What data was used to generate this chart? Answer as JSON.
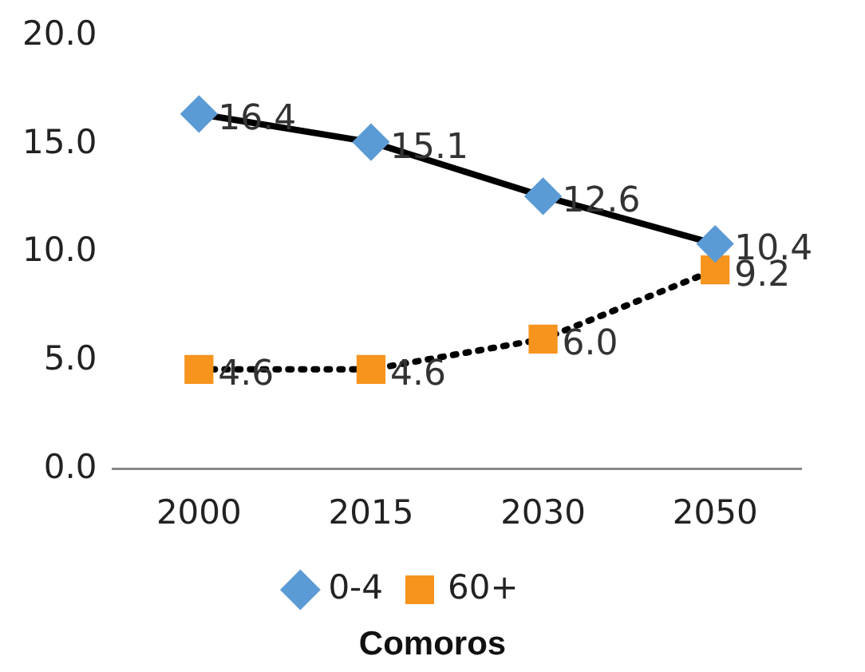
{
  "chart_data": {
    "type": "line",
    "xlabel": "Comoros",
    "categories": [
      "2000",
      "2015",
      "2030",
      "2050"
    ],
    "series": [
      {
        "name": "0-4",
        "color": "#5b9bd5",
        "values": [
          16.4,
          15.1,
          12.6,
          10.4
        ],
        "value_labels": [
          "16.4",
          "15.1",
          "12.6",
          "10.4"
        ],
        "marker": "diamond",
        "line_style": "solid"
      },
      {
        "name": "60+",
        "color": "#f7941d",
        "values": [
          4.6,
          4.6,
          6.0,
          9.2
        ],
        "value_labels": [
          "4.6",
          "4.6",
          "6.0",
          "9.2"
        ],
        "marker": "square",
        "line_style": "dotted"
      }
    ],
    "ylim": [
      0,
      20
    ],
    "yticks": [
      {
        "value": 0,
        "label": "0.0"
      },
      {
        "value": 5,
        "label": "5.0"
      },
      {
        "value": 10,
        "label": "10.0"
      },
      {
        "value": 15,
        "label": "15.0"
      },
      {
        "value": 20,
        "label": "20.0"
      }
    ],
    "grid": false,
    "legend": "bottom"
  }
}
